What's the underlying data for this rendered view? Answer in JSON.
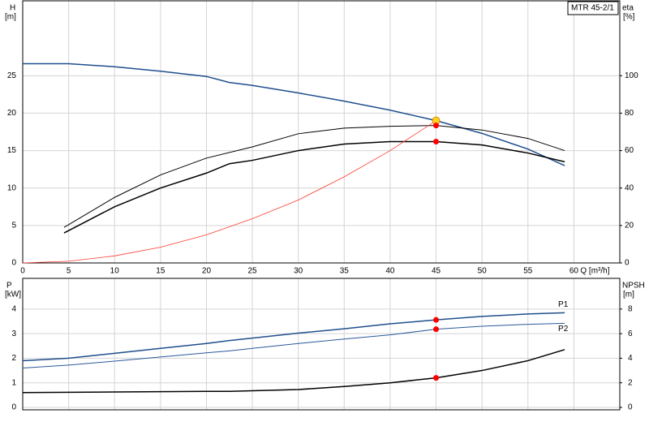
{
  "chart_data": [
    {
      "type": "line",
      "legend_box": "MTR 45-2/1",
      "ylabel": "H",
      "yunit": "[m]",
      "y2label": "eta",
      "y2unit": "[%]",
      "xlabel": "Q [m³/h]",
      "xlim": [
        0,
        65
      ],
      "xticks": [
        0,
        5,
        10,
        15,
        20,
        25,
        30,
        35,
        40,
        45,
        50,
        55,
        60
      ],
      "ylim": [
        0,
        35
      ],
      "yticks": [
        0,
        5,
        10,
        15,
        20,
        25
      ],
      "y2lim": [
        0,
        140
      ],
      "y2ticks": [
        0,
        20,
        40,
        60,
        80,
        100
      ],
      "grid": true,
      "series": [
        {
          "color": "#1f4e8c",
          "axis": "y",
          "line_width": 1.5,
          "x": [
            0,
            5,
            10,
            15,
            20,
            22.5,
            25,
            30,
            35,
            40,
            45,
            50,
            55,
            59
          ],
          "values": [
            26.6,
            26.6,
            26.2,
            25.6,
            24.9,
            24.1,
            23.7,
            22.7,
            21.6,
            20.4,
            19.0,
            17.3,
            15.2,
            13.0
          ]
        },
        {
          "color": "#000000",
          "axis": "y2",
          "line_width": 1,
          "x": [
            4.5,
            10,
            15,
            20,
            25,
            30,
            35,
            40,
            45,
            50,
            55,
            59
          ],
          "values": [
            19,
            35,
            47,
            56,
            62,
            69,
            72,
            73,
            73.4,
            71,
            66.5,
            60
          ]
        },
        {
          "color": "#000000",
          "axis": "y2",
          "line_width": 1.5,
          "x": [
            4.5,
            10,
            15,
            20,
            22.5,
            25,
            30,
            35,
            40,
            45,
            50,
            55,
            59
          ],
          "values": [
            16,
            30,
            40,
            48,
            53,
            54.8,
            60,
            63.5,
            64.8,
            64.8,
            63,
            58.7,
            54
          ]
        },
        {
          "color": "#ff3b30",
          "axis": "y",
          "line_width": 0.8,
          "x": [
            0,
            5,
            10,
            15,
            20,
            25,
            30,
            35,
            40,
            45
          ],
          "values": [
            0,
            0.23,
            0.94,
            2.1,
            3.75,
            5.9,
            8.4,
            11.5,
            15.0,
            19.0
          ]
        }
      ],
      "points": [
        {
          "x": 45,
          "y": 19.0,
          "axis": "y",
          "color": "#ffd21f"
        },
        {
          "x": 45,
          "y": 73.4,
          "axis": "y2",
          "color": "#ff0000"
        },
        {
          "x": 45,
          "y": 64.8,
          "axis": "y2",
          "color": "#ff0000"
        }
      ]
    },
    {
      "type": "line",
      "ylabel": "P",
      "yunit": "[kW]",
      "y2label": "NPSH",
      "y2unit": "[m]",
      "xlim": [
        0,
        65
      ],
      "ylim": [
        -0.1,
        5.25
      ],
      "yticks": [
        0,
        1,
        2,
        3,
        4
      ],
      "y2lim": [
        -0.2,
        10.5
      ],
      "y2ticks": [
        0,
        2,
        4,
        6,
        8
      ],
      "grid": true,
      "series": [
        {
          "name": "P1",
          "color": "#1f4e8c",
          "axis": "y",
          "line_width": 1.5,
          "x": [
            0,
            5,
            10,
            15,
            20,
            22.5,
            25,
            30,
            35,
            40,
            45,
            50,
            55,
            59
          ],
          "values": [
            1.9,
            2.0,
            2.2,
            2.4,
            2.6,
            2.72,
            2.82,
            3.02,
            3.2,
            3.4,
            3.56,
            3.7,
            3.8,
            3.85
          ]
        },
        {
          "name": "P2",
          "color": "#2a5a9a",
          "axis": "y",
          "line_width": 1,
          "x": [
            0,
            5,
            10,
            15,
            20,
            22.5,
            25,
            30,
            35,
            40,
            45,
            50,
            55,
            59
          ],
          "values": [
            1.6,
            1.72,
            1.88,
            2.05,
            2.22,
            2.3,
            2.4,
            2.6,
            2.78,
            2.95,
            3.18,
            3.3,
            3.38,
            3.42
          ]
        },
        {
          "color": "#000000",
          "axis": "y2",
          "line_width": 1.5,
          "x": [
            0,
            10,
            20,
            22.5,
            25,
            30,
            35,
            40,
            45,
            50,
            55,
            59
          ],
          "values": [
            1.2,
            1.25,
            1.3,
            1.3,
            1.35,
            1.45,
            1.7,
            2.0,
            2.4,
            3.0,
            3.8,
            4.7
          ]
        }
      ],
      "points": [
        {
          "x": 45,
          "y": 3.56,
          "axis": "y",
          "color": "#ff0000"
        },
        {
          "x": 45,
          "y": 3.18,
          "axis": "y",
          "color": "#ff0000"
        },
        {
          "x": 45,
          "y": 2.4,
          "axis": "y2",
          "color": "#ff0000"
        }
      ]
    }
  ]
}
